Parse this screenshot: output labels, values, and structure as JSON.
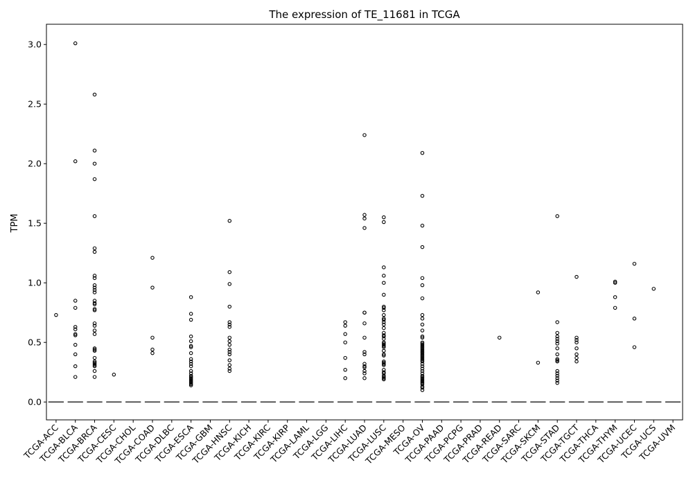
{
  "chart_data": {
    "type": "box",
    "title": "The expression of TE_11681 in TCGA",
    "xlabel": "",
    "ylabel": "TPM",
    "ylim": [
      -0.15,
      3.17
    ],
    "yticks": [
      0.0,
      0.5,
      1.0,
      1.5,
      2.0,
      2.5,
      3.0
    ],
    "ytick_labels": [
      "0.0",
      "0.5",
      "1.0",
      "1.5",
      "2.0",
      "2.5",
      "3.0"
    ],
    "grid": false,
    "legend": false,
    "categories": [
      "TCGA-ACC",
      "TCGA-BLCA",
      "TCGA-BRCA",
      "TCGA-CESC",
      "TCGA-CHOL",
      "TCGA-COAD",
      "TCGA-DLBC",
      "TCGA-ESCA",
      "TCGA-GBM",
      "TCGA-HNSC",
      "TCGA-KICH",
      "TCGA-KIRC",
      "TCGA-KIRP",
      "TCGA-LAML",
      "TCGA-LGG",
      "TCGA-LIHC",
      "TCGA-LUAD",
      "TCGA-LUSC",
      "TCGA-MESO",
      "TCGA-OV",
      "TCGA-PAAD",
      "TCGA-PCPG",
      "TCGA-PRAD",
      "TCGA-READ",
      "TCGA-SARC",
      "TCGA-SKCM",
      "TCGA-STAD",
      "TCGA-TGCT",
      "TCGA-THCA",
      "TCGA-THYM",
      "TCGA-UCEC",
      "TCGA-UCS",
      "TCGA-UVM"
    ],
    "medians": [
      0,
      0,
      0,
      0,
      0,
      0,
      0,
      0,
      0,
      0,
      0,
      0,
      0,
      0,
      0,
      0,
      0,
      0,
      0,
      0,
      0,
      0,
      0,
      0,
      0,
      0,
      0,
      0,
      0,
      0,
      0,
      0,
      0
    ],
    "outliers": [
      [
        0.73
      ],
      [
        3.01,
        2.02,
        0.85,
        0.79,
        0.63,
        0.61,
        0.57,
        0.56,
        0.48,
        0.4,
        0.3,
        0.21
      ],
      [
        2.58,
        2.11,
        2.0,
        1.87,
        1.56,
        1.29,
        1.26,
        1.06,
        1.04,
        0.98,
        0.96,
        0.94,
        0.92,
        0.85,
        0.83,
        0.82,
        0.78,
        0.77,
        0.66,
        0.64,
        0.6,
        0.57,
        0.45,
        0.44,
        0.43,
        0.37,
        0.34,
        0.33,
        0.32,
        0.31,
        0.3,
        0.26,
        0.21
      ],
      [
        0.23
      ],
      [],
      [
        1.21,
        0.96,
        0.54,
        0.44,
        0.41
      ],
      [],
      [
        0.88,
        0.74,
        0.69,
        0.55,
        0.51,
        0.47,
        0.46,
        0.41,
        0.36,
        0.34,
        0.32,
        0.3,
        0.26,
        0.24,
        0.22,
        0.21,
        0.2,
        0.19,
        0.18,
        0.17,
        0.16,
        0.15,
        0.14
      ],
      [],
      [
        1.52,
        1.09,
        0.99,
        0.8,
        0.67,
        0.65,
        0.63,
        0.54,
        0.51,
        0.48,
        0.44,
        0.42,
        0.4,
        0.35,
        0.31,
        0.28,
        0.26
      ],
      [],
      [],
      [],
      [],
      [],
      [
        0.67,
        0.64,
        0.57,
        0.5,
        0.37,
        0.27,
        0.2
      ],
      [
        2.24,
        1.57,
        1.54,
        1.46,
        0.75,
        0.75,
        0.66,
        0.54,
        0.42,
        0.4,
        0.32,
        0.3,
        0.29,
        0.26,
        0.24,
        0.2
      ],
      [
        1.55,
        1.51,
        1.13,
        1.06,
        1.0,
        0.9,
        0.8,
        0.79,
        0.77,
        0.73,
        0.7,
        0.69,
        0.67,
        0.65,
        0.62,
        0.58,
        0.56,
        0.55,
        0.53,
        0.5,
        0.49,
        0.48,
        0.47,
        0.46,
        0.43,
        0.4,
        0.39,
        0.34,
        0.33,
        0.32,
        0.31,
        0.27,
        0.25,
        0.24,
        0.22,
        0.21,
        0.2,
        0.19
      ],
      [],
      [
        2.09,
        1.73,
        1.48,
        1.3,
        1.04,
        0.98,
        0.87,
        0.73,
        0.7,
        0.65,
        0.6,
        0.55,
        0.54,
        0.5,
        0.49,
        0.48,
        0.47,
        0.46,
        0.45,
        0.44,
        0.43,
        0.42,
        0.41,
        0.4,
        0.39,
        0.38,
        0.37,
        0.36,
        0.35,
        0.34,
        0.32,
        0.3,
        0.28,
        0.26,
        0.24,
        0.22,
        0.21,
        0.2,
        0.19,
        0.18,
        0.17,
        0.16,
        0.15,
        0.13,
        0.12,
        0.1
      ],
      [],
      [],
      [],
      [
        0.54
      ],
      [],
      [
        0.92,
        0.33
      ],
      [
        1.56,
        0.67,
        0.58,
        0.55,
        0.53,
        0.51,
        0.49,
        0.45,
        0.4,
        0.36,
        0.35,
        0.34,
        0.26,
        0.24,
        0.22,
        0.2,
        0.18,
        0.16
      ],
      [
        1.05,
        0.54,
        0.52,
        0.5,
        0.45,
        0.4,
        0.37,
        0.34
      ],
      [],
      [
        1.01,
        1.0,
        0.88,
        0.79
      ],
      [
        1.16,
        0.7,
        0.46
      ],
      [
        0.95
      ],
      []
    ]
  }
}
